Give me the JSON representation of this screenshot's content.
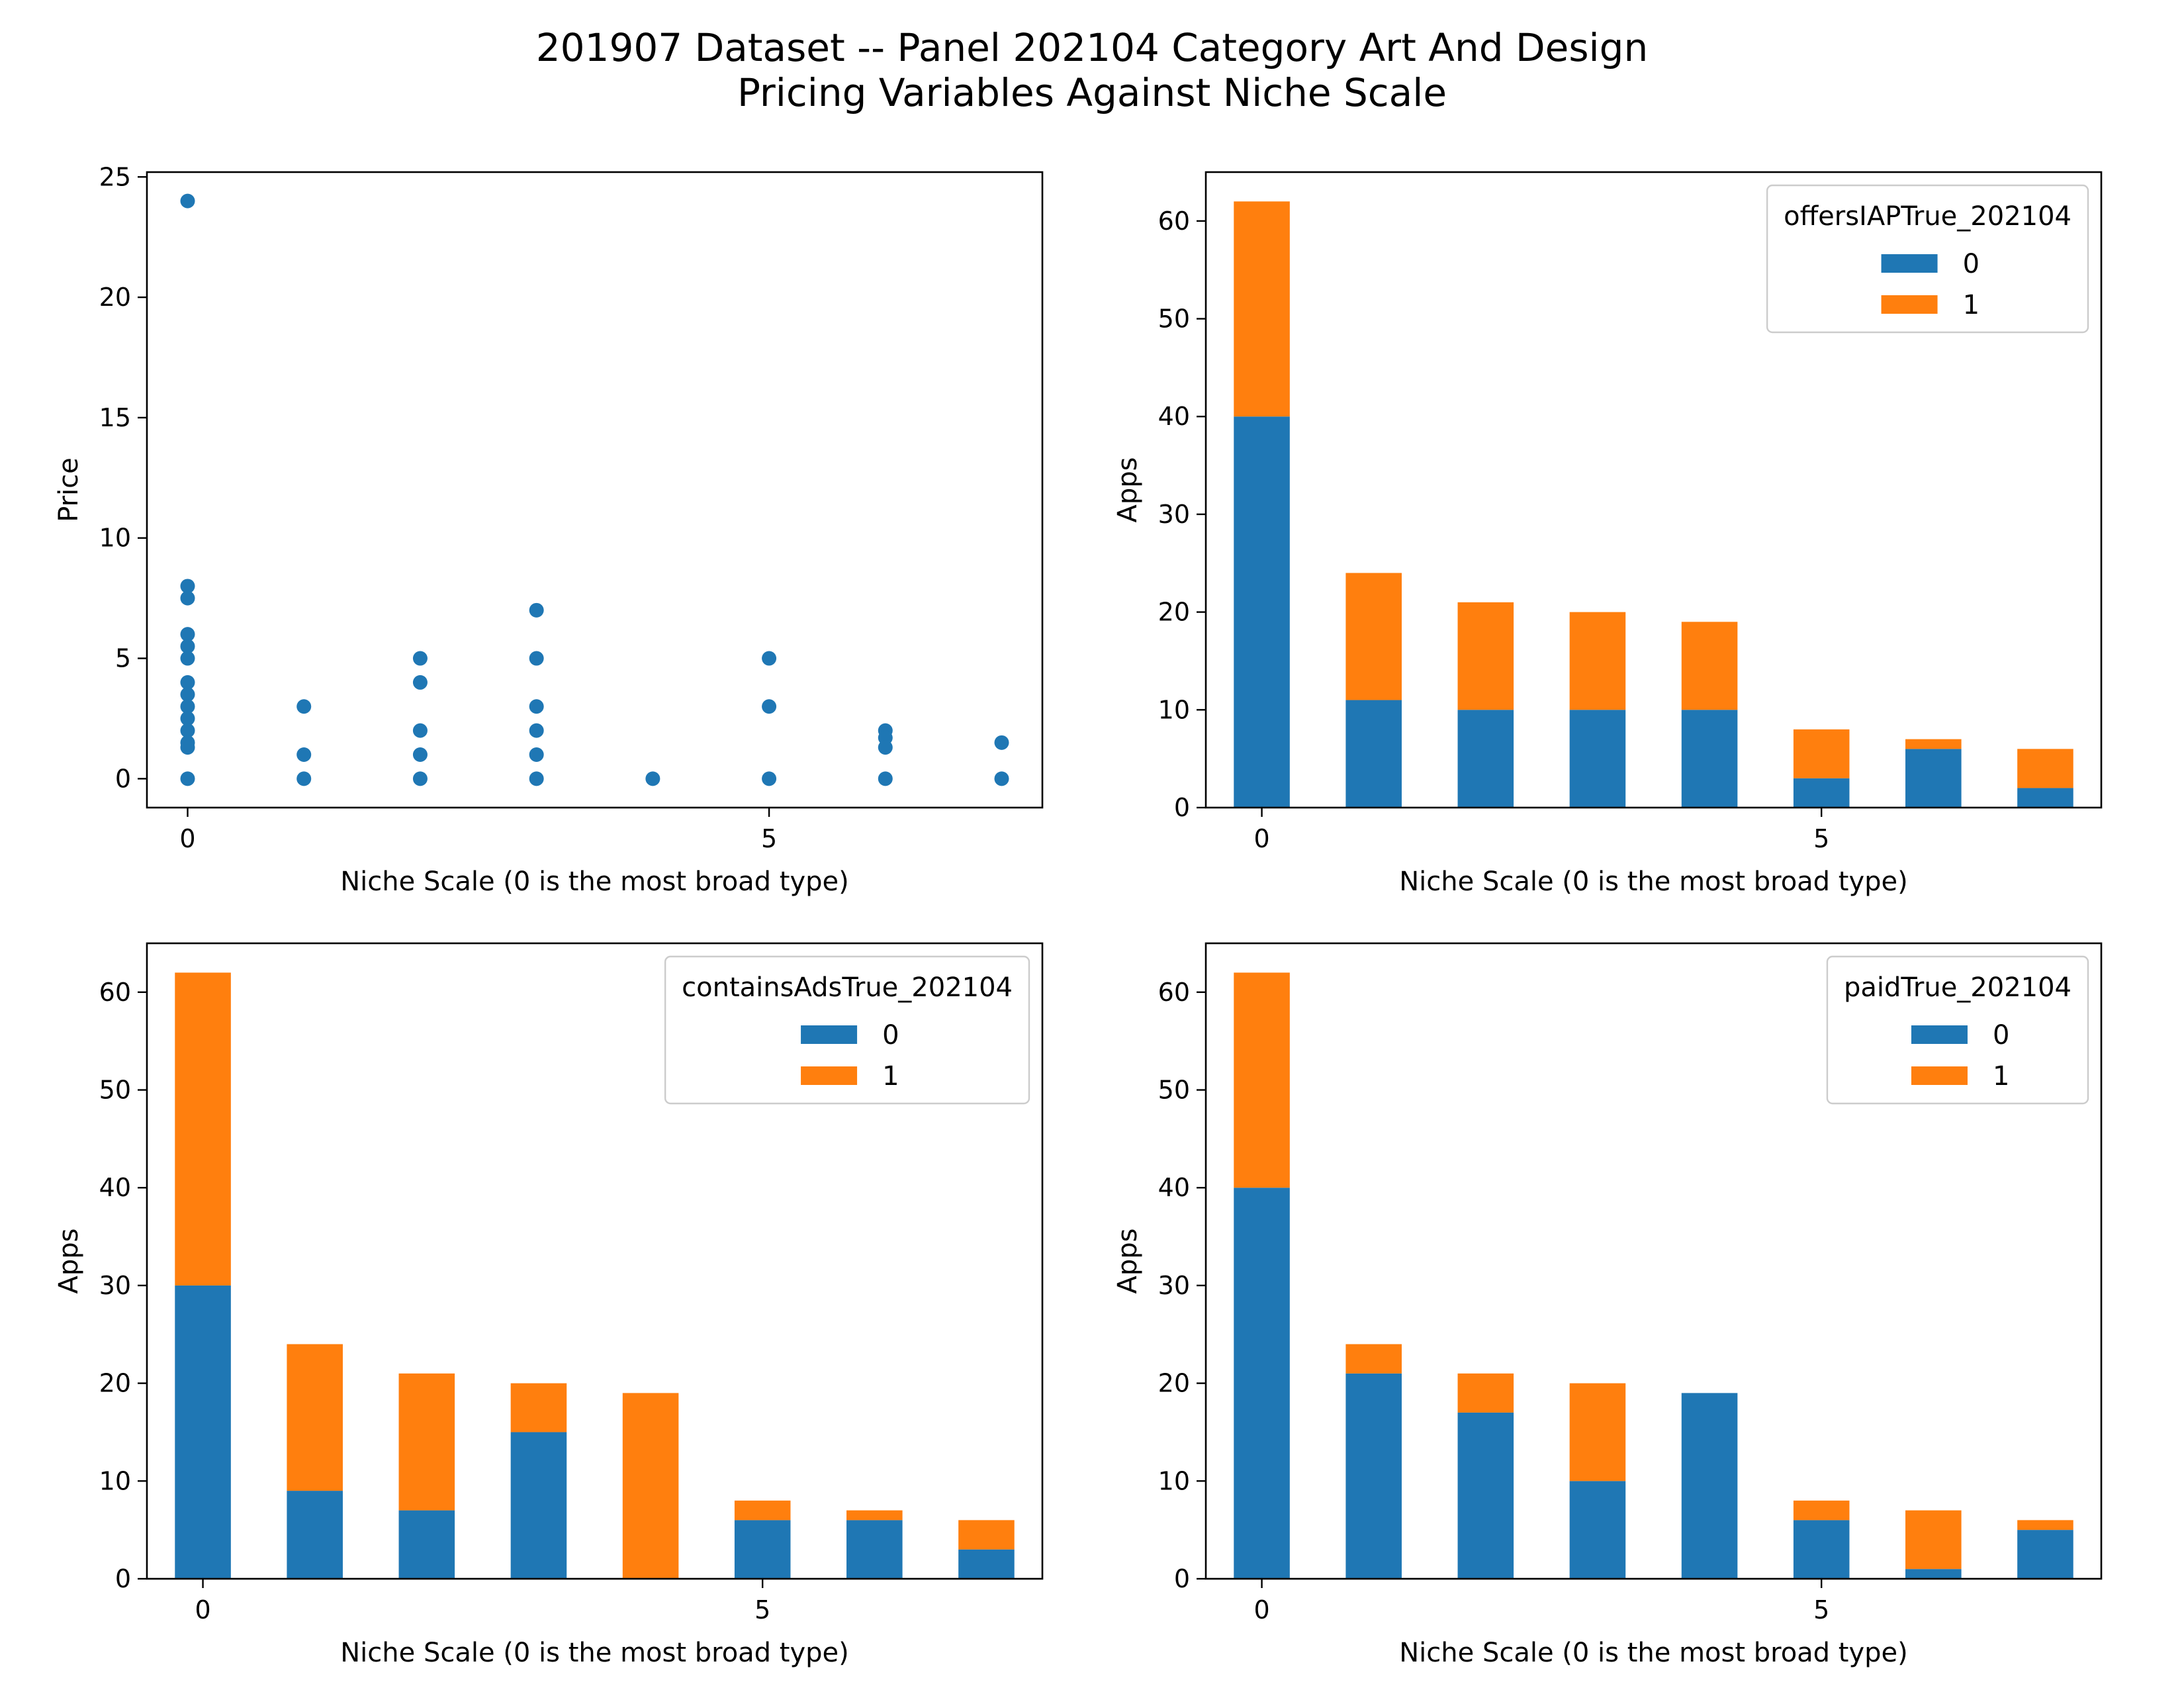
{
  "figure": {
    "title_line1": "201907 Dataset -- Panel 202104 Category Art And Design",
    "title_line2": "Pricing Variables Against Niche Scale"
  },
  "colors": {
    "series0": "#1f77b4",
    "series1": "#ff7f0e",
    "axes": "#000000",
    "background": "#ffffff"
  },
  "chart_data": [
    {
      "type": "scatter",
      "xlabel": "Niche Scale (0 is the most broad type)",
      "ylabel": "Price",
      "xlim": [
        -0.35,
        7.35
      ],
      "ylim": [
        -1.2,
        25.2
      ],
      "xticks": [
        0,
        5
      ],
      "yticks": [
        0,
        5,
        10,
        15,
        20,
        25
      ],
      "points": [
        [
          0,
          24
        ],
        [
          0,
          8
        ],
        [
          0,
          7.5
        ],
        [
          0,
          6
        ],
        [
          0,
          5.5
        ],
        [
          0,
          5
        ],
        [
          0,
          4
        ],
        [
          0,
          3.5
        ],
        [
          0,
          3
        ],
        [
          0,
          2.5
        ],
        [
          0,
          2
        ],
        [
          0,
          1.5
        ],
        [
          0,
          1.3
        ],
        [
          0,
          0
        ],
        [
          1,
          3
        ],
        [
          1,
          1
        ],
        [
          1,
          0
        ],
        [
          2,
          5
        ],
        [
          2,
          4
        ],
        [
          2,
          2
        ],
        [
          2,
          1
        ],
        [
          2,
          0
        ],
        [
          3,
          7
        ],
        [
          3,
          5
        ],
        [
          3,
          3
        ],
        [
          3,
          2
        ],
        [
          3,
          1
        ],
        [
          3,
          0
        ],
        [
          4,
          0
        ],
        [
          5,
          5
        ],
        [
          5,
          3
        ],
        [
          5,
          0
        ],
        [
          6,
          2
        ],
        [
          6,
          1.7
        ],
        [
          6,
          1.3
        ],
        [
          6,
          0
        ],
        [
          7,
          1.5
        ],
        [
          7,
          0
        ]
      ]
    },
    {
      "type": "bar",
      "stacked": true,
      "xlabel": "Niche Scale (0 is the most broad type)",
      "ylabel": "Apps",
      "categories": [
        0,
        1,
        2,
        3,
        4,
        5,
        6,
        7
      ],
      "xticks": [
        0,
        5
      ],
      "ylim": [
        0,
        65
      ],
      "yticks": [
        0,
        10,
        20,
        30,
        40,
        50,
        60
      ],
      "legend": {
        "title": "offersIAPTrue_202104",
        "position": "upper right"
      },
      "series": [
        {
          "name": "0",
          "values": [
            40,
            11,
            10,
            10,
            10,
            3,
            6,
            2
          ]
        },
        {
          "name": "1",
          "values": [
            22,
            13,
            11,
            10,
            9,
            5,
            1,
            4
          ]
        }
      ]
    },
    {
      "type": "bar",
      "stacked": true,
      "xlabel": "Niche Scale (0 is the most broad type)",
      "ylabel": "Apps",
      "categories": [
        0,
        1,
        2,
        3,
        4,
        5,
        6,
        7
      ],
      "xticks": [
        0,
        5
      ],
      "ylim": [
        0,
        65
      ],
      "yticks": [
        0,
        10,
        20,
        30,
        40,
        50,
        60
      ],
      "legend": {
        "title": "containsAdsTrue_202104",
        "position": "upper right"
      },
      "series": [
        {
          "name": "0",
          "values": [
            30,
            9,
            7,
            15,
            0,
            6,
            6,
            3
          ]
        },
        {
          "name": "1",
          "values": [
            32,
            15,
            14,
            5,
            19,
            2,
            1,
            3
          ]
        }
      ]
    },
    {
      "type": "bar",
      "stacked": true,
      "xlabel": "Niche Scale (0 is the most broad type)",
      "ylabel": "Apps",
      "categories": [
        0,
        1,
        2,
        3,
        4,
        5,
        6,
        7
      ],
      "xticks": [
        0,
        5
      ],
      "ylim": [
        0,
        65
      ],
      "yticks": [
        0,
        10,
        20,
        30,
        40,
        50,
        60
      ],
      "legend": {
        "title": "paidTrue_202104",
        "position": "upper right"
      },
      "series": [
        {
          "name": "0",
          "values": [
            40,
            21,
            17,
            10,
            19,
            6,
            1,
            5
          ]
        },
        {
          "name": "1",
          "values": [
            22,
            3,
            4,
            10,
            0,
            2,
            6,
            1
          ]
        }
      ]
    }
  ]
}
